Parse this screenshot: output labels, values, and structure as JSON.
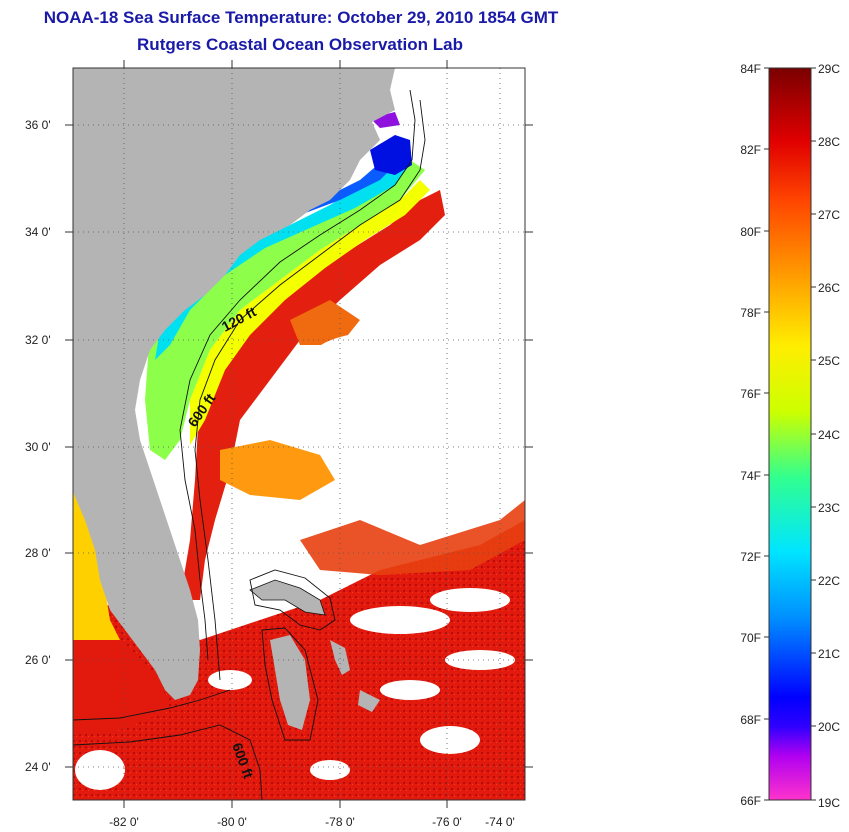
{
  "header": {
    "title": "NOAA-18 Sea Surface Temperature:  October 29, 2010 1854 GMT",
    "subtitle": "Rutgers Coastal Ocean Observation Lab"
  },
  "map": {
    "lat_labels": [
      "36 0'",
      "34 0'",
      "32 0'",
      "30 0'",
      "28 0'",
      "26 0'",
      "24 0'"
    ],
    "lon_labels": [
      "-82 0'",
      "-80 0'",
      "-78 0'",
      "-76 0'",
      "-74 0'"
    ],
    "contour_labels": [
      "120 ft",
      "600 ft",
      "600 ft"
    ],
    "colors": {
      "land": "#b4b4b4",
      "cloud": "#ffffff",
      "gulf_stream": "#e81e10"
    }
  },
  "colorbar": {
    "fahrenheit_labels": [
      "84F",
      "82F",
      "80F",
      "78F",
      "76F",
      "74F",
      "72F",
      "70F",
      "68F",
      "66F"
    ],
    "celsius_labels": [
      "29C",
      "28C",
      "27C",
      "26C",
      "25C",
      "24C",
      "23C",
      "22C",
      "21C",
      "20C",
      "19C"
    ],
    "colors": [
      "#ff33cc",
      "#8000ff",
      "#0000ff",
      "#0090ff",
      "#00e5ff",
      "#30ff90",
      "#ccff00",
      "#ffee00",
      "#ff9900",
      "#ff4400",
      "#e00000",
      "#7a0000"
    ]
  }
}
